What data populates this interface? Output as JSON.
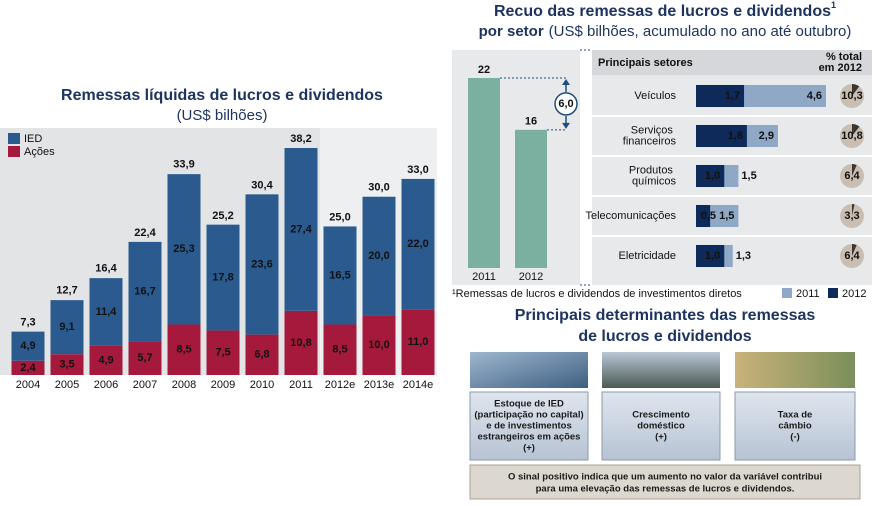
{
  "chart_data": [
    {
      "type": "stacked-bar",
      "title": "Remessas líquidas de lucros e dividendos",
      "subtitle": "(US$ bilhões)",
      "categories": [
        "2004",
        "2005",
        "2006",
        "2007",
        "2008",
        "2009",
        "2010",
        "2011",
        "2012e",
        "2013e",
        "2014e"
      ],
      "series": [
        {
          "name": "IED",
          "color": "#2b5b8e",
          "values": [
            4.9,
            9.1,
            11.4,
            16.7,
            25.3,
            17.8,
            23.6,
            27.4,
            16.5,
            20.0,
            22.0
          ],
          "value_labels": [
            "4,9",
            "9,1",
            "11,4",
            "16,7",
            "25,3",
            "17,8",
            "23,6",
            "27,4",
            "16,5",
            "20,0",
            "22,0"
          ]
        },
        {
          "name": "Ações",
          "color": "#a5193c",
          "values": [
            2.4,
            3.5,
            4.9,
            5.7,
            8.5,
            7.5,
            6.8,
            10.8,
            8.5,
            10.0,
            11.0
          ],
          "value_labels": [
            "2,4",
            "3,5",
            "4,9",
            "5,7",
            "8,5",
            "7,5",
            "6,8",
            "10,8",
            "8,5",
            "10,0",
            "11,0"
          ]
        }
      ],
      "totals": [
        7.3,
        12.7,
        16.4,
        22.4,
        33.9,
        25.2,
        30.4,
        38.2,
        25.0,
        30.0,
        33.0
      ],
      "total_labels": [
        "7,3",
        "12,7",
        "16,4",
        "22,4",
        "33,9",
        "25,2",
        "30,4",
        "38,2",
        "25,0",
        "30,0",
        "33,0"
      ]
    },
    {
      "type": "bar",
      "title": "Recuo das remessas de lucros e dividendos",
      "title_note": "1",
      "subtitle_bold": "por setor",
      "subtitle": "(US$ bilhões, acumulado no ano até outubro)",
      "categories": [
        "2011",
        "2012"
      ],
      "values": [
        22,
        16
      ],
      "color": "#7bb0a0",
      "annotation": "6,0",
      "footnote": "¹Remessas de lucros e dividendos de investimentos diretos"
    },
    {
      "type": "hbar",
      "title": "Principais setores",
      "categories": [
        "Veículos",
        "Serviços financeiros",
        "Produtos químicos",
        "Telecomunicações",
        "Eletricidade"
      ],
      "series": [
        {
          "name": "2011",
          "color": "#8ea8c6",
          "values": [
            4.6,
            2.9,
            1.5,
            1.5,
            1.3
          ],
          "value_labels": [
            "4,6",
            "2,9",
            "1,5",
            "1,5",
            "1,3"
          ]
        },
        {
          "name": "2012",
          "color": "#0e2a5a",
          "values": [
            1.7,
            1.8,
            1.0,
            0.5,
            1.0
          ],
          "value_labels": [
            "1,7",
            "1,8",
            "1,0",
            "0,5",
            "1,0"
          ]
        }
      ],
      "shares_title": [
        "% total",
        "em 2012"
      ],
      "shares": [
        10.3,
        10.8,
        6.4,
        3.3,
        6.4
      ],
      "share_labels": [
        "10,3",
        "10,8",
        "6,4",
        "3,3",
        "6,4"
      ]
    }
  ],
  "determinants": {
    "title": [
      "Principais determinantes das remessas",
      "de lucros e dividendos"
    ],
    "items": [
      {
        "lines": [
          "Estoque de IED",
          "(participação no capital)",
          "e de investimentos",
          "estrangeiros em ações",
          "(+)"
        ]
      },
      {
        "lines": [
          "Crescimento",
          "doméstico",
          "(+)"
        ]
      },
      {
        "lines": [
          "Taxa de",
          "câmbio",
          "(-)"
        ]
      }
    ],
    "note": [
      "O sinal positivo indica que um aumento no valor da variável contribui",
      "para uma elevação das remessas de lucros e dividendos."
    ]
  }
}
